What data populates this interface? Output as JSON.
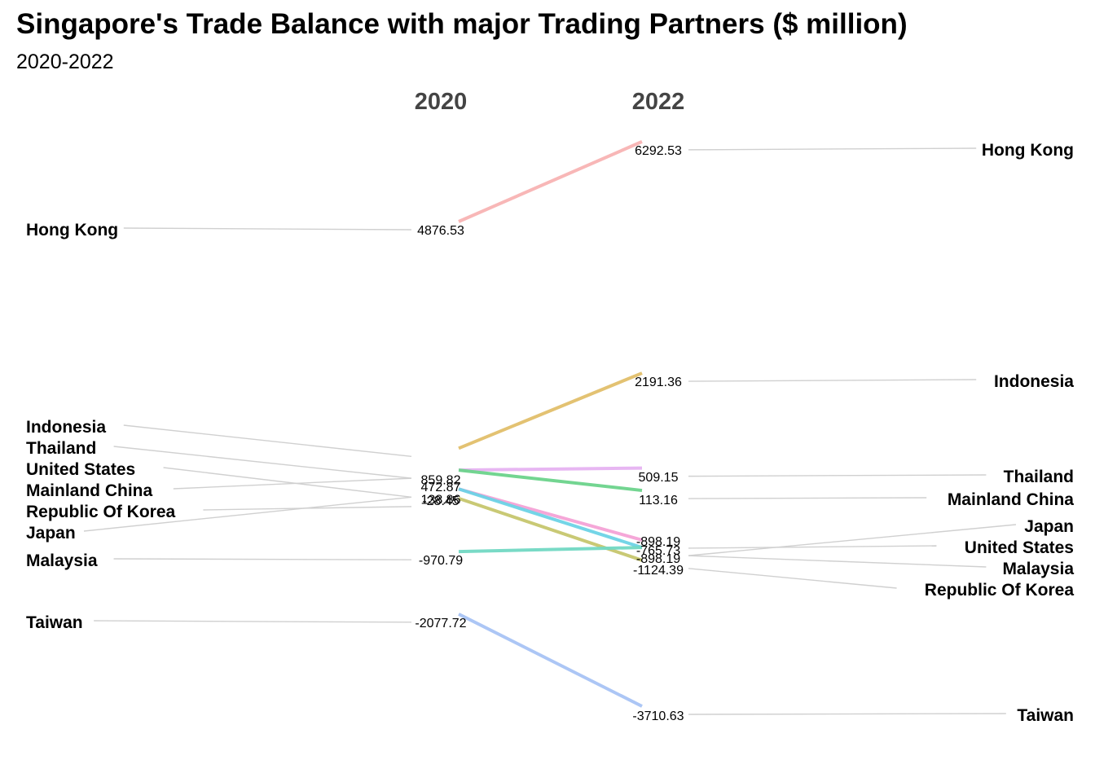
{
  "title": "Singapore's Trade Balance with major Trading Partners ($ million)",
  "subtitle": "2020-2022",
  "chart_data": {
    "type": "line",
    "subtype": "slope",
    "title": "Singapore's Trade Balance with major Trading Partners ($ million)",
    "subtitle": "2020-2022",
    "x": [
      "2020",
      "2022"
    ],
    "ylim": [
      -3900,
      6500
    ],
    "grid": false,
    "legend": "none",
    "series": [
      {
        "name": "Hong Kong",
        "values": [
          4876.53,
          6292.53
        ],
        "color": "#F8B4B4"
      },
      {
        "name": "Indonesia",
        "values": [
          859.82,
          2191.36
        ],
        "color": "#E2BF6B"
      },
      {
        "name": "Thailand",
        "values": [
          472.87,
          509.15
        ],
        "color": "#E6B3F2"
      },
      {
        "name": "United States",
        "values": [
          138.86,
          -765.73
        ],
        "color": "#F5A3D6"
      },
      {
        "name": "Mainland China",
        "values": [
          472.87,
          113.16
        ],
        "color": "#6CD38C"
      },
      {
        "name": "Republic Of Korea",
        "values": [
          -28.45,
          -1124.39
        ],
        "color": "#C7C76E"
      },
      {
        "name": "Japan",
        "values": [
          138.86,
          -898.19
        ],
        "color": "#6DD3E6"
      },
      {
        "name": "Malaysia",
        "values": [
          -970.79,
          -898.19
        ],
        "color": "#72D9C4"
      },
      {
        "name": "Taiwan",
        "values": [
          -2077.72,
          -3710.63
        ],
        "color": "#A8C4F5"
      }
    ],
    "labels_2020": [
      {
        "country": "Hong Kong",
        "value": "4876.53"
      },
      {
        "country": "Indonesia",
        "value": "859.82"
      },
      {
        "country": "Thailand",
        "value": "472.87"
      },
      {
        "country": "United States",
        "value": "138.86"
      },
      {
        "country": "Mainland China",
        "value": ""
      },
      {
        "country": "Republic Of Korea",
        "value": "-28.45"
      },
      {
        "country": "Japan",
        "value": ""
      },
      {
        "country": "Malaysia",
        "value": "-970.79"
      },
      {
        "country": "Taiwan",
        "value": "-2077.72"
      }
    ],
    "labels_2022": [
      {
        "country": "Hong Kong",
        "value": "6292.53"
      },
      {
        "country": "Indonesia",
        "value": "2191.36"
      },
      {
        "country": "Thailand",
        "value": "509.15"
      },
      {
        "country": "Mainland China",
        "value": "113.16"
      },
      {
        "country": "Japan",
        "value": "-898.19"
      },
      {
        "country": "United States",
        "value": "-765.73"
      },
      {
        "country": "Malaysia",
        "value": "-898.19"
      },
      {
        "country": "Republic Of Korea",
        "value": "-1124.39"
      },
      {
        "country": "Taiwan",
        "value": "-3710.63"
      }
    ]
  }
}
